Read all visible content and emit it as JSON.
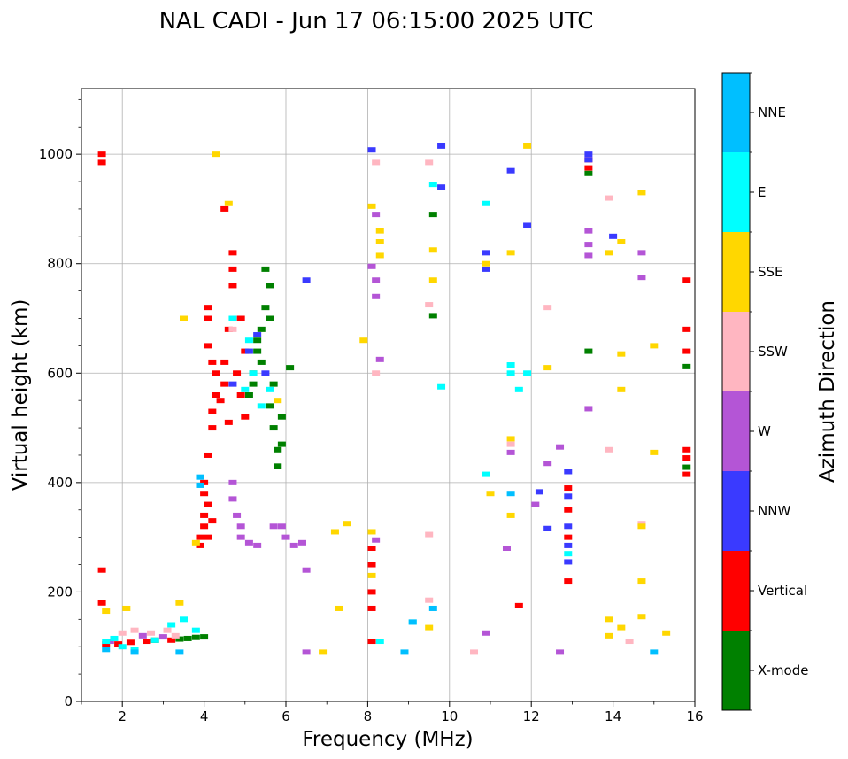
{
  "chart_data": {
    "type": "scatter",
    "title": "NAL CADI - Jun 17 06:15:00 2025 UTC",
    "xlabel": "Frequency (MHz)",
    "ylabel": "Virtual height (km)",
    "xlim": [
      1,
      16
    ],
    "ylim": [
      0,
      1120
    ],
    "xticks": [
      2,
      4,
      6,
      8,
      10,
      12,
      14,
      16
    ],
    "yticks": [
      0,
      200,
      400,
      600,
      800,
      1000
    ],
    "grid": true,
    "colorbar": {
      "label": "Azimuth Direction",
      "categories": [
        {
          "name": "X-mode",
          "color": "#008000"
        },
        {
          "name": "Vertical",
          "color": "#ff0000"
        },
        {
          "name": "NNW",
          "color": "#3a3aff"
        },
        {
          "name": "W",
          "color": "#b455d6"
        },
        {
          "name": "SSW",
          "color": "#ffb6c1"
        },
        {
          "name": "SSE",
          "color": "#ffd700"
        },
        {
          "name": "E",
          "color": "#00ffff"
        },
        {
          "name": "NNE",
          "color": "#00bfff"
        }
      ]
    },
    "series": [
      {
        "name": "X-mode",
        "points": [
          [
            3.6,
            115
          ],
          [
            3.8,
            117
          ],
          [
            4.0,
            118
          ],
          [
            3.4,
            114
          ],
          [
            2.8,
            112
          ],
          [
            5.1,
            560
          ],
          [
            5.2,
            600
          ],
          [
            5.3,
            640
          ],
          [
            5.4,
            680
          ],
          [
            5.5,
            720
          ],
          [
            5.6,
            760
          ],
          [
            5.5,
            790
          ],
          [
            5.6,
            540
          ],
          [
            5.7,
            500
          ],
          [
            5.8,
            460
          ],
          [
            5.8,
            430
          ],
          [
            5.9,
            470
          ],
          [
            5.7,
            580
          ],
          [
            5.4,
            620
          ],
          [
            5.3,
            660
          ],
          [
            5.6,
            700
          ],
          [
            5.2,
            580
          ],
          [
            5.9,
            520
          ],
          [
            6.1,
            610
          ],
          [
            9.6,
            890
          ],
          [
            9.6,
            705
          ],
          [
            13.4,
            965
          ],
          [
            13.4,
            640
          ],
          [
            15.8,
            612
          ],
          [
            15.8,
            428
          ]
        ]
      },
      {
        "name": "Vertical",
        "points": [
          [
            1.5,
            1000
          ],
          [
            1.5,
            985
          ],
          [
            1.5,
            240
          ],
          [
            1.5,
            180
          ],
          [
            1.6,
            105
          ],
          [
            1.9,
            105
          ],
          [
            2.2,
            108
          ],
          [
            2.6,
            110
          ],
          [
            3.2,
            112
          ],
          [
            3.9,
            285
          ],
          [
            3.9,
            300
          ],
          [
            4.0,
            320
          ],
          [
            4.0,
            340
          ],
          [
            4.1,
            360
          ],
          [
            4.0,
            380
          ],
          [
            4.1,
            300
          ],
          [
            4.2,
            330
          ],
          [
            4.0,
            400
          ],
          [
            4.1,
            450
          ],
          [
            4.2,
            500
          ],
          [
            4.2,
            530
          ],
          [
            4.3,
            560
          ],
          [
            4.3,
            600
          ],
          [
            4.2,
            620
          ],
          [
            4.1,
            650
          ],
          [
            4.1,
            700
          ],
          [
            4.1,
            720
          ],
          [
            4.4,
            550
          ],
          [
            4.5,
            580
          ],
          [
            4.6,
            510
          ],
          [
            4.5,
            620
          ],
          [
            4.6,
            680
          ],
          [
            4.7,
            760
          ],
          [
            4.7,
            790
          ],
          [
            4.7,
            820
          ],
          [
            4.8,
            600
          ],
          [
            4.9,
            560
          ],
          [
            5.0,
            520
          ],
          [
            5.0,
            640
          ],
          [
            4.9,
            700
          ],
          [
            4.5,
            900
          ],
          [
            8.1,
            280
          ],
          [
            8.1,
            250
          ],
          [
            8.1,
            200
          ],
          [
            8.1,
            170
          ],
          [
            8.1,
            110
          ],
          [
            11.7,
            175
          ],
          [
            12.9,
            220
          ],
          [
            12.9,
            300
          ],
          [
            12.9,
            350
          ],
          [
            12.9,
            390
          ],
          [
            13.4,
            990
          ],
          [
            13.4,
            975
          ],
          [
            15.8,
            770
          ],
          [
            15.8,
            680
          ],
          [
            15.8,
            640
          ],
          [
            15.8,
            460
          ],
          [
            15.8,
            445
          ],
          [
            15.8,
            415
          ]
        ]
      },
      {
        "name": "NNW",
        "points": [
          [
            4.7,
            580
          ],
          [
            5.1,
            640
          ],
          [
            5.3,
            670
          ],
          [
            5.5,
            600
          ],
          [
            6.5,
            770
          ],
          [
            8.1,
            1008
          ],
          [
            9.8,
            1015
          ],
          [
            9.8,
            940
          ],
          [
            10.9,
            820
          ],
          [
            10.9,
            790
          ],
          [
            11.5,
            970
          ],
          [
            11.9,
            870
          ],
          [
            12.2,
            383
          ],
          [
            12.4,
            316
          ],
          [
            12.9,
            420
          ],
          [
            12.9,
            375
          ],
          [
            12.9,
            320
          ],
          [
            12.9,
            285
          ],
          [
            12.9,
            255
          ],
          [
            13.4,
            990
          ],
          [
            13.4,
            1000
          ],
          [
            14.0,
            850
          ]
        ]
      },
      {
        "name": "W",
        "points": [
          [
            1.7,
            110
          ],
          [
            2.5,
            120
          ],
          [
            3.0,
            118
          ],
          [
            4.7,
            400
          ],
          [
            4.7,
            370
          ],
          [
            4.8,
            340
          ],
          [
            4.9,
            320
          ],
          [
            4.9,
            300
          ],
          [
            5.1,
            290
          ],
          [
            5.3,
            285
          ],
          [
            5.7,
            320
          ],
          [
            5.9,
            320
          ],
          [
            6.0,
            300
          ],
          [
            6.2,
            285
          ],
          [
            6.4,
            290
          ],
          [
            6.5,
            240
          ],
          [
            6.5,
            90
          ],
          [
            8.2,
            890
          ],
          [
            8.1,
            795
          ],
          [
            8.2,
            770
          ],
          [
            8.2,
            740
          ],
          [
            8.2,
            295
          ],
          [
            8.3,
            625
          ],
          [
            10.9,
            125
          ],
          [
            11.4,
            280
          ],
          [
            11.5,
            455
          ],
          [
            12.1,
            360
          ],
          [
            12.4,
            435
          ],
          [
            12.7,
            465
          ],
          [
            12.7,
            90
          ],
          [
            13.4,
            860
          ],
          [
            13.4,
            835
          ],
          [
            13.4,
            815
          ],
          [
            13.4,
            535
          ],
          [
            14.7,
            820
          ],
          [
            14.7,
            775
          ]
        ]
      },
      {
        "name": "SSW",
        "points": [
          [
            2.0,
            125
          ],
          [
            2.3,
            130
          ],
          [
            2.7,
            125
          ],
          [
            3.1,
            130
          ],
          [
            3.3,
            120
          ],
          [
            4.7,
            680
          ],
          [
            8.2,
            985
          ],
          [
            8.2,
            600
          ],
          [
            9.5,
            985
          ],
          [
            9.5,
            725
          ],
          [
            9.5,
            305
          ],
          [
            9.5,
            185
          ],
          [
            10.6,
            90
          ],
          [
            11.5,
            470
          ],
          [
            12.4,
            720
          ],
          [
            13.9,
            920
          ],
          [
            13.9,
            460
          ],
          [
            14.4,
            110
          ],
          [
            14.7,
            325
          ]
        ]
      },
      {
        "name": "SSE",
        "points": [
          [
            1.6,
            165
          ],
          [
            2.1,
            170
          ],
          [
            3.4,
            180
          ],
          [
            3.5,
            700
          ],
          [
            3.8,
            290
          ],
          [
            4.3,
            1000
          ],
          [
            4.6,
            910
          ],
          [
            5.8,
            550
          ],
          [
            6.9,
            90
          ],
          [
            7.2,
            310
          ],
          [
            7.3,
            170
          ],
          [
            7.5,
            325
          ],
          [
            7.9,
            660
          ],
          [
            8.1,
            905
          ],
          [
            8.1,
            310
          ],
          [
            8.1,
            230
          ],
          [
            8.3,
            860
          ],
          [
            8.3,
            840
          ],
          [
            8.3,
            815
          ],
          [
            9.6,
            825
          ],
          [
            9.6,
            770
          ],
          [
            9.5,
            135
          ],
          [
            10.9,
            800
          ],
          [
            11.0,
            380
          ],
          [
            11.5,
            820
          ],
          [
            11.5,
            480
          ],
          [
            11.5,
            340
          ],
          [
            11.9,
            1015
          ],
          [
            12.4,
            610
          ],
          [
            13.9,
            820
          ],
          [
            13.9,
            150
          ],
          [
            13.9,
            120
          ],
          [
            14.2,
            840
          ],
          [
            14.2,
            635
          ],
          [
            14.2,
            570
          ],
          [
            14.2,
            135
          ],
          [
            14.7,
            930
          ],
          [
            14.7,
            220
          ],
          [
            14.7,
            155
          ],
          [
            14.7,
            320
          ],
          [
            15.0,
            650
          ],
          [
            15.0,
            455
          ],
          [
            15.3,
            125
          ]
        ]
      },
      {
        "name": "E",
        "points": [
          [
            1.6,
            110
          ],
          [
            1.8,
            115
          ],
          [
            2.0,
            100
          ],
          [
            2.3,
            95
          ],
          [
            2.8,
            112
          ],
          [
            3.2,
            140
          ],
          [
            3.5,
            150
          ],
          [
            3.8,
            130
          ],
          [
            4.7,
            700
          ],
          [
            5.0,
            570
          ],
          [
            5.2,
            600
          ],
          [
            5.4,
            540
          ],
          [
            5.6,
            570
          ],
          [
            5.1,
            660
          ],
          [
            8.3,
            110
          ],
          [
            9.1,
            145
          ],
          [
            9.6,
            945
          ],
          [
            9.8,
            575
          ],
          [
            10.9,
            910
          ],
          [
            10.9,
            415
          ],
          [
            11.5,
            615
          ],
          [
            11.5,
            600
          ],
          [
            11.7,
            570
          ],
          [
            11.9,
            600
          ],
          [
            12.9,
            270
          ]
        ]
      },
      {
        "name": "NNE",
        "points": [
          [
            1.6,
            95
          ],
          [
            2.3,
            90
          ],
          [
            3.4,
            90
          ],
          [
            3.9,
            410
          ],
          [
            3.9,
            395
          ],
          [
            8.9,
            90
          ],
          [
            9.1,
            145
          ],
          [
            9.6,
            170
          ],
          [
            11.5,
            380
          ],
          [
            15.0,
            90
          ]
        ]
      }
    ]
  }
}
